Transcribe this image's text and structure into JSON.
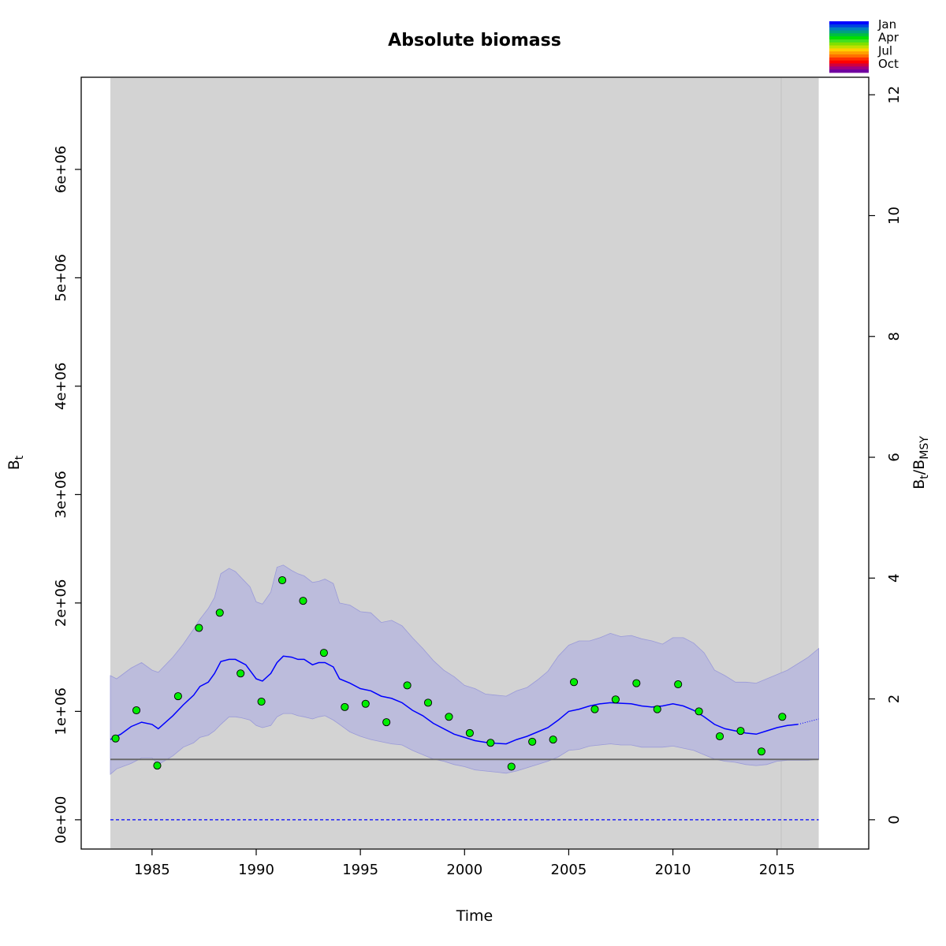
{
  "chart_data": {
    "type": "line",
    "title": "Absolute biomass",
    "xlabel": "Time",
    "ylabel": {
      "base": "B",
      "sub": "t"
    },
    "y2label": {
      "base1": "B",
      "sub1": "t",
      "sep": "/",
      "base2": "B",
      "sub2": "MSY"
    },
    "xlim": [
      1981.6,
      2019.4
    ],
    "ylim": [
      -270000,
      6850000
    ],
    "y2lim": [
      -0.4848,
      12.29
    ],
    "xticks": [
      "1985",
      "1990",
      "1995",
      "2000",
      "2005",
      "2010",
      "2015"
    ],
    "yticks": [
      "0e+00",
      "1e+06",
      "2e+06",
      "3e+06",
      "4e+06",
      "5e+06",
      "6e+06"
    ],
    "y2ticks": [
      "0",
      "2",
      "4",
      "6",
      "8",
      "10",
      "12"
    ],
    "grid": false,
    "background_shade": {
      "x_start": 1983.0,
      "x_end": 2017.0,
      "color": "#d3d3d3"
    },
    "vertical_line_x": 2015.2,
    "bmsy": 557000,
    "series": [
      {
        "type": "points",
        "color": "#00ee00",
        "x": [
          1983.25,
          1984.25,
          1985.25,
          1986.25,
          1987.25,
          1988.25,
          1989.25,
          1990.25,
          1991.25,
          1992.25,
          1993.25,
          1994.25,
          1995.25,
          1996.25,
          1997.25,
          1998.25,
          1999.25,
          2000.25,
          2001.25,
          2002.25,
          2003.25,
          2004.25,
          2005.25,
          2006.25,
          2007.25,
          2008.25,
          2009.25,
          2010.25,
          2011.25,
          2012.25,
          2013.25,
          2014.25,
          2015.25
        ],
        "y": [
          750000,
          1010000,
          500000,
          1140000,
          1770000,
          1910000,
          1350000,
          1090000,
          2210000,
          2020000,
          1540000,
          1040000,
          1070000,
          900000,
          1240000,
          1080000,
          950000,
          800000,
          710000,
          490000,
          720000,
          740000,
          1270000,
          1020000,
          1110000,
          1260000,
          1020000,
          1250000,
          1000000,
          770000,
          820000,
          630000,
          950000
        ]
      },
      {
        "type": "line",
        "color": "#0000ff",
        "x": [
          1983.0,
          1983.5,
          1984.0,
          1984.5,
          1985.0,
          1985.3,
          1986.0,
          1986.5,
          1987.0,
          1987.3,
          1987.7,
          1988.0,
          1988.3,
          1988.7,
          1989.0,
          1989.5,
          1990.0,
          1990.3,
          1990.7,
          1991.0,
          1991.3,
          1991.7,
          1992.0,
          1992.3,
          1992.7,
          1993.0,
          1993.3,
          1993.7,
          1994.0,
          1994.5,
          1995.0,
          1995.5,
          1996.0,
          1996.5,
          1997.0,
          1997.5,
          1998.0,
          1998.5,
          1999.0,
          1999.5,
          2000.0,
          2000.5,
          2001.0,
          2001.5,
          2002.0,
          2002.5,
          2003.0,
          2003.5,
          2004.0,
          2004.5,
          2005.0,
          2005.5,
          2006.0,
          2006.5,
          2007.0,
          2007.5,
          2008.0,
          2008.5,
          2009.0,
          2009.5,
          2010.0,
          2010.5,
          2011.0,
          2011.5,
          2012.0,
          2012.5,
          2013.0,
          2013.5,
          2014.0,
          2014.5,
          2015.0,
          2015.5,
          2016.0
        ],
        "y": [
          740000,
          790000,
          860000,
          900000,
          880000,
          840000,
          960000,
          1060000,
          1150000,
          1230000,
          1270000,
          1350000,
          1460000,
          1480000,
          1480000,
          1430000,
          1300000,
          1280000,
          1350000,
          1450000,
          1510000,
          1500000,
          1480000,
          1480000,
          1430000,
          1450000,
          1450000,
          1410000,
          1300000,
          1260000,
          1210000,
          1190000,
          1140000,
          1120000,
          1080000,
          1010000,
          960000,
          890000,
          840000,
          790000,
          760000,
          730000,
          715000,
          705000,
          700000,
          740000,
          770000,
          810000,
          850000,
          920000,
          1000000,
          1020000,
          1050000,
          1070000,
          1080000,
          1075000,
          1070000,
          1050000,
          1040000,
          1050000,
          1070000,
          1050000,
          1010000,
          950000,
          880000,
          840000,
          820000,
          800000,
          790000,
          820000,
          850000,
          870000,
          880000
        ]
      },
      {
        "type": "line",
        "style": "dotted",
        "color": "#0000ff",
        "x": [
          2016.0,
          2016.5,
          2017.0
        ],
        "y": [
          880000,
          905000,
          930000
        ]
      },
      {
        "type": "band",
        "color": "#bcbcdc",
        "x": [
          1983.0,
          1983.3,
          1984.0,
          1984.5,
          1985.0,
          1985.3,
          1986.0,
          1986.5,
          1987.0,
          1987.3,
          1987.7,
          1988.0,
          1988.3,
          1988.7,
          1989.0,
          1989.3,
          1989.7,
          1990.0,
          1990.3,
          1990.7,
          1991.0,
          1991.3,
          1991.7,
          1992.0,
          1992.3,
          1992.7,
          1993.0,
          1993.3,
          1993.7,
          1994.0,
          1994.5,
          1995.0,
          1995.5,
          1996.0,
          1996.5,
          1997.0,
          1997.5,
          1998.0,
          1998.5,
          1999.0,
          1999.5,
          2000.0,
          2000.5,
          2001.0,
          2001.5,
          2002.0,
          2002.5,
          2003.0,
          2003.5,
          2004.0,
          2004.5,
          2005.0,
          2005.5,
          2006.0,
          2006.5,
          2007.0,
          2007.5,
          2008.0,
          2008.5,
          2009.0,
          2009.5,
          2010.0,
          2010.5,
          2011.0,
          2011.5,
          2012.0,
          2012.5,
          2013.0,
          2013.5,
          2014.0,
          2014.5,
          2015.0,
          2015.5,
          2016.0,
          2016.5,
          2017.0
        ],
        "upper": [
          1330000,
          1300000,
          1400000,
          1450000,
          1380000,
          1360000,
          1500000,
          1620000,
          1760000,
          1850000,
          1950000,
          2050000,
          2270000,
          2320000,
          2290000,
          2230000,
          2150000,
          2010000,
          1990000,
          2100000,
          2330000,
          2350000,
          2300000,
          2270000,
          2250000,
          2190000,
          2200000,
          2220000,
          2180000,
          2000000,
          1980000,
          1920000,
          1910000,
          1820000,
          1840000,
          1790000,
          1680000,
          1580000,
          1470000,
          1380000,
          1320000,
          1240000,
          1210000,
          1160000,
          1150000,
          1140000,
          1190000,
          1220000,
          1290000,
          1370000,
          1510000,
          1610000,
          1650000,
          1650000,
          1680000,
          1720000,
          1690000,
          1700000,
          1670000,
          1650000,
          1620000,
          1680000,
          1680000,
          1630000,
          1540000,
          1380000,
          1330000,
          1270000,
          1270000,
          1260000,
          1300000,
          1340000,
          1380000,
          1440000,
          1500000,
          1580000
        ],
        "lower": [
          420000,
          470000,
          520000,
          570000,
          570000,
          510000,
          590000,
          670000,
          710000,
          760000,
          780000,
          820000,
          880000,
          950000,
          950000,
          940000,
          920000,
          870000,
          850000,
          870000,
          950000,
          980000,
          980000,
          960000,
          950000,
          930000,
          950000,
          960000,
          920000,
          880000,
          810000,
          770000,
          740000,
          720000,
          700000,
          690000,
          640000,
          600000,
          560000,
          540000,
          510000,
          490000,
          460000,
          450000,
          440000,
          430000,
          450000,
          480000,
          510000,
          540000,
          580000,
          640000,
          650000,
          680000,
          690000,
          700000,
          690000,
          690000,
          670000,
          670000,
          670000,
          680000,
          660000,
          640000,
          600000,
          560000,
          540000,
          530000,
          510000,
          500000,
          510000,
          540000,
          550000,
          550000,
          550000,
          560000
        ]
      },
      {
        "type": "hline",
        "style": "dashed",
        "color": "#0000ff",
        "y": 0
      }
    ],
    "legend": {
      "placement": "top-right",
      "type": "color-bar",
      "labels": [
        "Jan",
        "Apr",
        "Jul",
        "Oct"
      ],
      "colors": [
        "#0000ff",
        "#0040e0",
        "#0080c0",
        "#00a080",
        "#00c040",
        "#00e000",
        "#40e020",
        "#80e000",
        "#c0e000",
        "#ffd000",
        "#ffa000",
        "#ff7000",
        "#ff3000",
        "#ff0000",
        "#d00040",
        "#a00080",
        "#7000a0"
      ]
    }
  }
}
